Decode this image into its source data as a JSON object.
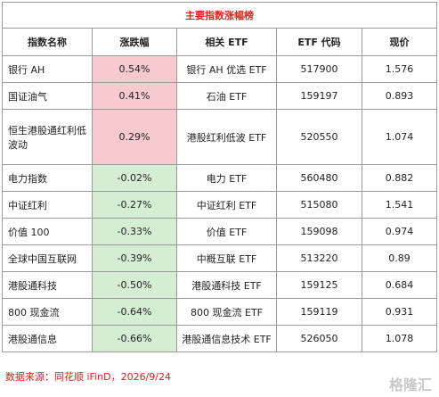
{
  "title": "主要指数涨幅榜",
  "table": {
    "header": [
      "指数名称",
      "涨跌幅",
      "相关 ETF",
      "ETF 代码",
      "现价"
    ],
    "rows": [
      [
        "银行 AH",
        "0.54%",
        "银行 AH 优选 ETF",
        "517900",
        "1.576"
      ],
      [
        "国证油气",
        "0.41%",
        "石油 ETF",
        "159197",
        "0.893"
      ],
      [
        "恒生港股通红利低波动",
        "0.29%",
        "港股红利低波 ETF",
        "520550",
        "1.074"
      ],
      [
        "电力指数",
        "-0.02%",
        "电力 ETF",
        "560480",
        "0.882"
      ],
      [
        "中证红利",
        "-0.27%",
        "中证红利 ETF",
        "515080",
        "1.541"
      ],
      [
        "价值 100",
        "-0.33%",
        "价值 ETF",
        "159098",
        "0.974"
      ],
      [
        "全球中国互联网",
        "-0.39%",
        "中概互联 ETF",
        "513220",
        "0.89"
      ],
      [
        "港股通科技",
        "-0.50%",
        "港股通科技 ETF",
        "159125",
        "0.684"
      ],
      [
        "800 现金流",
        "-0.64%",
        "800 现金流 ETF",
        "159119",
        "0.931"
      ],
      [
        "港股通信息",
        "-0.66%",
        "港股通信息技术 ETF",
        "526050",
        "1.078"
      ]
    ]
  },
  "footer": "数据来源：同花顺 iFinD，2026/9/24",
  "watermark": "格隆汇"
}
